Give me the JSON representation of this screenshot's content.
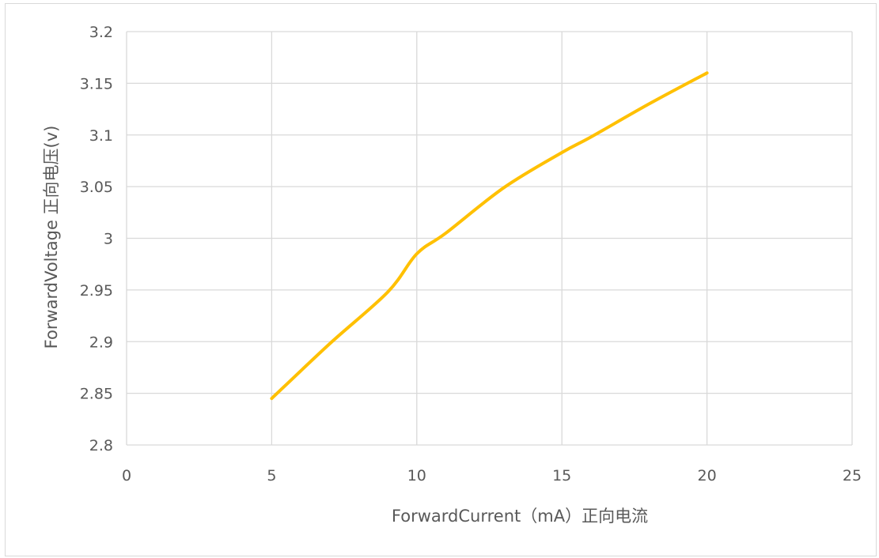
{
  "chart_data": {
    "type": "line",
    "title": "",
    "xlabel": "ForwardCurrent（mA）正向电流",
    "ylabel": "ForwardVoltage 正向电压(v)",
    "xlim": [
      0,
      25
    ],
    "ylim": [
      2.8,
      3.2
    ],
    "x_ticks": [
      "0",
      "5",
      "10",
      "15",
      "20",
      "25"
    ],
    "y_ticks": [
      "2.8",
      "2.85",
      "2.9",
      "2.95",
      "3",
      "3.05",
      "3.1",
      "3.15",
      "3.2"
    ],
    "grid": true,
    "legend": "none",
    "series": [
      {
        "color": "#FFC000",
        "x": [
          5,
          7,
          9,
          10,
          11,
          13,
          15,
          16,
          18,
          20
        ],
        "y": [
          2.845,
          2.898,
          2.948,
          2.985,
          3.005,
          3.049,
          3.083,
          3.098,
          3.13,
          3.16
        ]
      }
    ]
  }
}
